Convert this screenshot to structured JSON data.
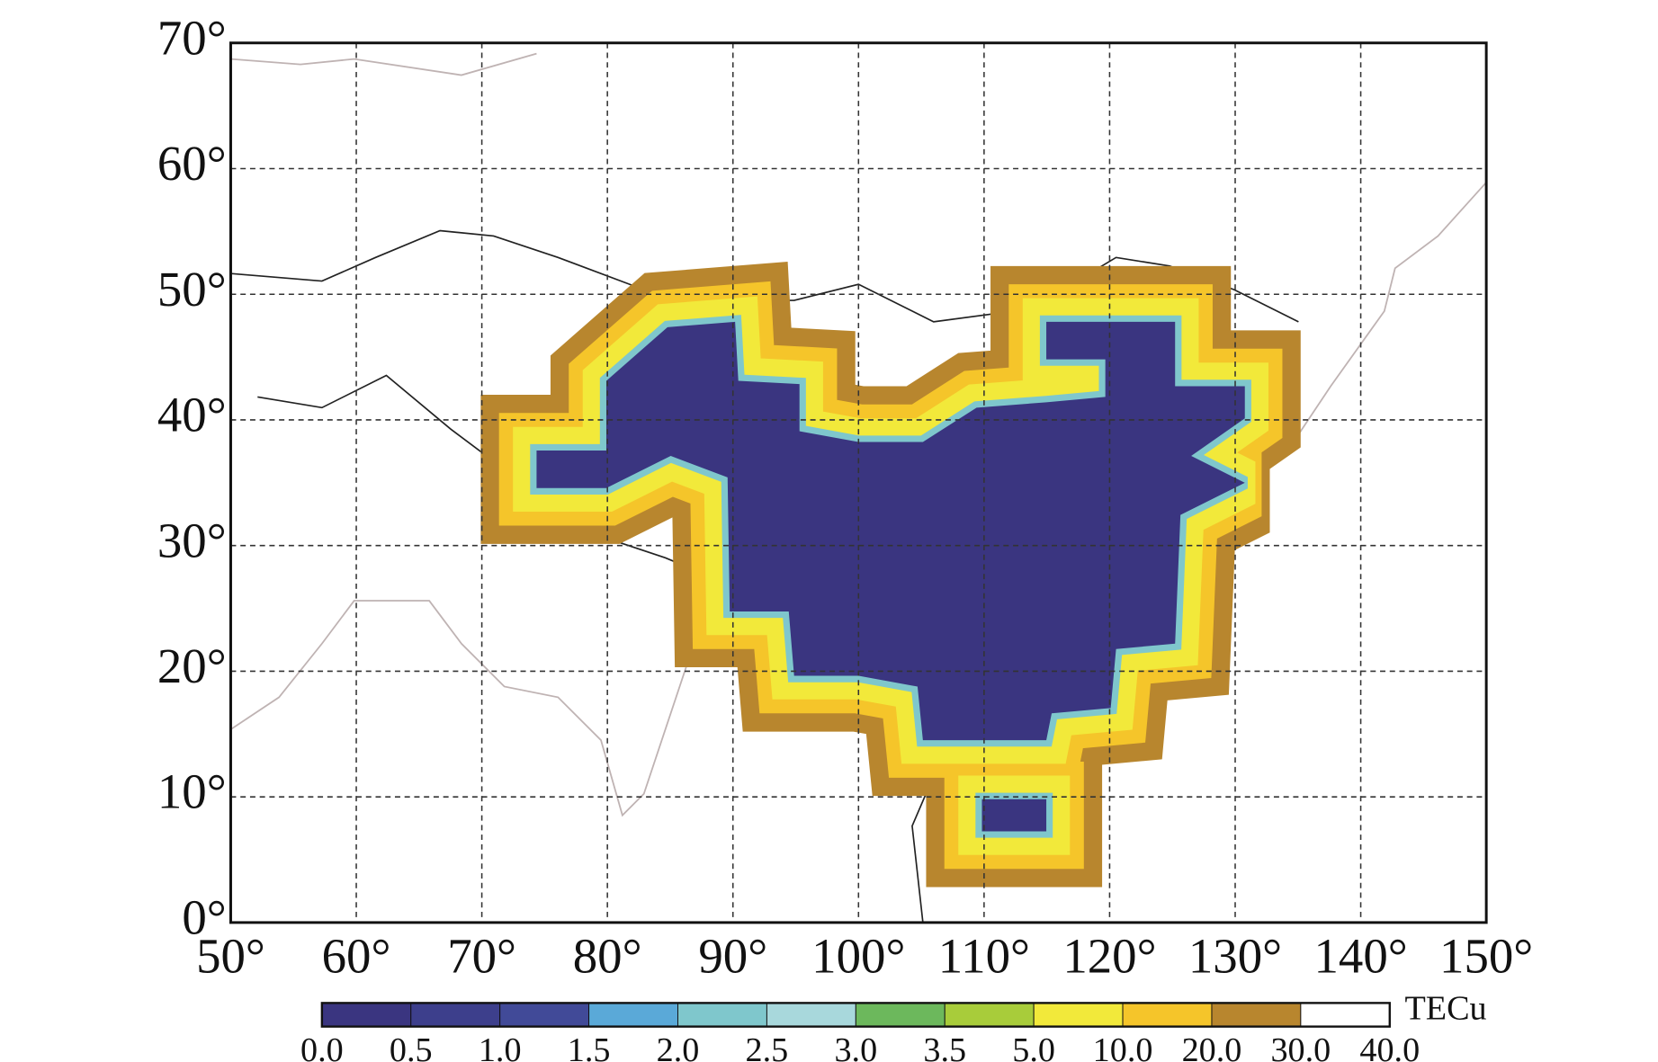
{
  "chart_data": {
    "type": "contour-map",
    "xlim": [
      50,
      150
    ],
    "xticks": [
      {
        "value": 50,
        "label": "50°"
      },
      {
        "value": 60,
        "label": "60°"
      },
      {
        "value": 70,
        "label": "70°"
      },
      {
        "value": 80,
        "label": "80°"
      },
      {
        "value": 90,
        "label": "90°"
      },
      {
        "value": 100,
        "label": "100°"
      },
      {
        "value": 110,
        "label": "110°"
      },
      {
        "value": 120,
        "label": "120°"
      },
      {
        "value": 130,
        "label": "130°"
      },
      {
        "value": 140,
        "label": "140°"
      },
      {
        "value": 150,
        "label": "150°"
      }
    ],
    "ylim": [
      0,
      70
    ],
    "yticks": [
      {
        "value": 0,
        "label": "0°"
      },
      {
        "value": 10,
        "label": "10°"
      },
      {
        "value": 20,
        "label": "20°"
      },
      {
        "value": 30,
        "label": "30°"
      },
      {
        "value": 40,
        "label": "40°"
      },
      {
        "value": 50,
        "label": "50°"
      },
      {
        "value": 60,
        "label": "60°"
      },
      {
        "value": 70,
        "label": "70°"
      }
    ],
    "grid": true,
    "colorbar": {
      "label": "TECu",
      "levels": [
        {
          "value": 0,
          "label": "0.0"
        },
        {
          "value": 0.5,
          "label": "0.5"
        },
        {
          "value": 1,
          "label": "1.0"
        },
        {
          "value": 1.5,
          "label": "1.5"
        },
        {
          "value": 2,
          "label": "2.0"
        },
        {
          "value": 2.5,
          "label": "2.5"
        },
        {
          "value": 3,
          "label": "3.0"
        },
        {
          "value": 3.5,
          "label": "3.5"
        },
        {
          "value": 5,
          "label": "5.0"
        },
        {
          "value": 10,
          "label": "10.0"
        },
        {
          "value": 20,
          "label": "20.0"
        },
        {
          "value": 30,
          "label": "30.0"
        },
        {
          "value": 40,
          "label": "40.0"
        }
      ],
      "colors": [
        "#3a3580",
        "#3d3f8c",
        "#414a98",
        "#5aa9d8",
        "#7fc7cc",
        "#a8d8dc",
        "#6cb85c",
        "#a8cc3a",
        "#f2e93a",
        "#f5c52a",
        "#b8862e",
        "#ffffff"
      ]
    }
  }
}
